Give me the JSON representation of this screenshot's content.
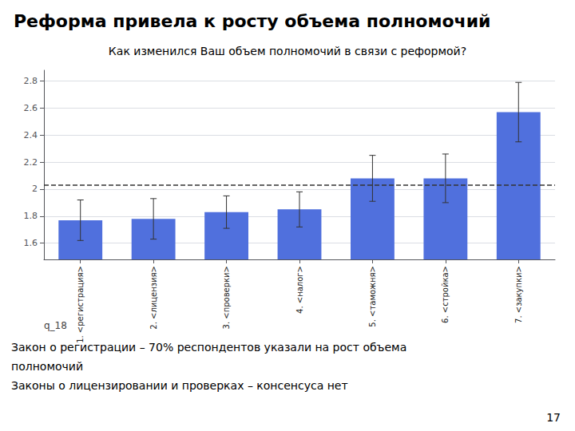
{
  "chart_data": {
    "type": "bar",
    "title": "Реформа привела к росту объема полномочий",
    "subtitle": "Как изменился Ваш объем полномочий в связи с реформой?",
    "categories": [
      "1. <регистрация>",
      "2. <лицензия>",
      "3. <проверки>",
      "4. <налог>",
      "5. <таможня>",
      "6. <стройка>",
      "7. <закупки>"
    ],
    "values": [
      1.77,
      1.78,
      1.83,
      1.85,
      2.08,
      2.08,
      2.57
    ],
    "errors": [
      0.15,
      0.15,
      0.12,
      0.13,
      0.17,
      0.18,
      0.22
    ],
    "reference_line": 2.03,
    "xlabel": "q_18",
    "notes": [
      "Закон о регистрации – 70% респондентов указали на рост объема",
      "полномочий",
      "Законы о лицензировании и проверках – консенсуса нет"
    ],
    "page_number": "17",
    "ylim": [
      1.48,
      2.88
    ],
    "yticks": [
      1.6,
      1.8,
      2.0,
      2.2,
      2.4,
      2.6,
      2.8
    ],
    "grid": true
  }
}
